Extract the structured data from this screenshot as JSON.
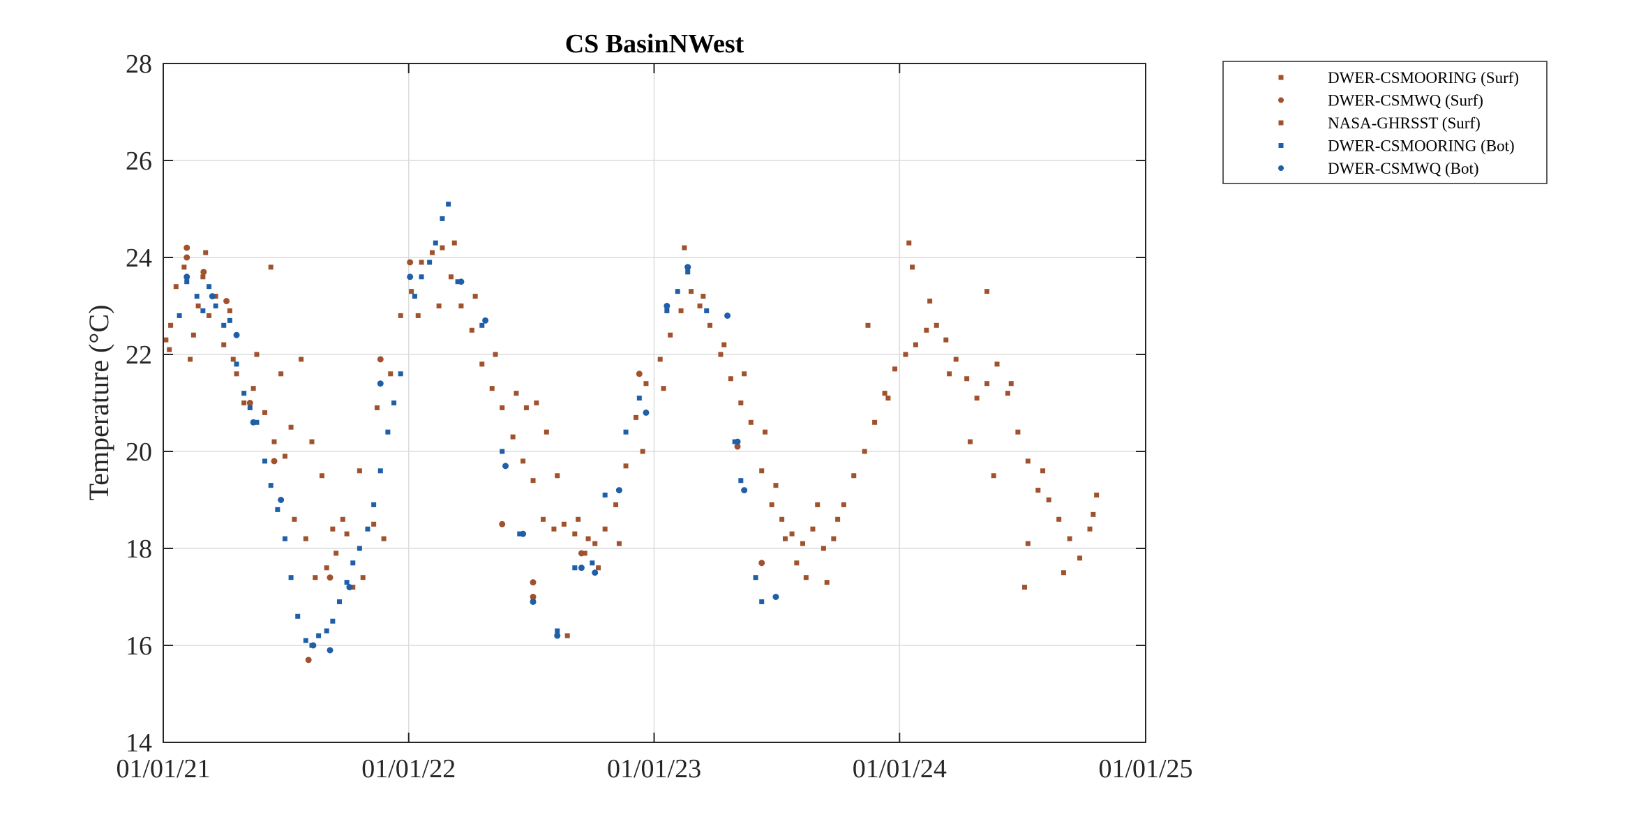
{
  "chart_data": {
    "type": "scatter",
    "title": "CS BasinNWest",
    "xlabel": "",
    "ylabel": "Temperature (°C)",
    "ylim": [
      14,
      28
    ],
    "yticks": [
      14,
      16,
      18,
      20,
      22,
      24,
      26,
      28
    ],
    "xlim": [
      "2021-01-01",
      "2025-01-01"
    ],
    "xticks": [
      "2021-01-01",
      "2022-01-01",
      "2023-01-01",
      "2024-01-01",
      "2025-01-01"
    ],
    "xtick_labels": [
      "01/01/21",
      "01/01/22",
      "01/01/23",
      "01/01/24",
      "01/01/25"
    ],
    "grid": true,
    "legend_position": "outside-top-right",
    "colors": {
      "surf": "#a0522d",
      "bot": "#1f5fa8",
      "axis": "#262626",
      "grid": "#dcdcdc"
    },
    "series": [
      {
        "name": "DWER-CSMOORING (Surf)",
        "marker": "square",
        "color": "#a0522d",
        "points": [
          [
            "2021-01-05",
            22.3
          ],
          [
            "2021-01-12",
            22.6
          ],
          [
            "2021-01-20",
            23.4
          ],
          [
            "2021-02-01",
            23.8
          ],
          [
            "2021-02-15",
            22.4
          ],
          [
            "2021-02-22",
            23.0
          ],
          [
            "2021-03-01",
            23.6
          ],
          [
            "2021-03-10",
            22.8
          ],
          [
            "2021-03-20",
            23.2
          ],
          [
            "2021-04-01",
            22.2
          ],
          [
            "2021-04-10",
            22.9
          ],
          [
            "2021-04-20",
            21.6
          ],
          [
            "2021-05-01",
            21.0
          ],
          [
            "2021-05-15",
            21.3
          ],
          [
            "2021-06-01",
            20.8
          ],
          [
            "2021-06-15",
            20.2
          ],
          [
            "2021-07-01",
            19.9
          ],
          [
            "2021-07-15",
            18.6
          ],
          [
            "2021-08-01",
            18.2
          ],
          [
            "2021-08-15",
            17.4
          ],
          [
            "2021-09-01",
            17.6
          ],
          [
            "2021-09-15",
            17.9
          ],
          [
            "2021-10-01",
            18.3
          ],
          [
            "2021-10-20",
            19.6
          ],
          [
            "2021-11-15",
            20.9
          ],
          [
            "2021-12-05",
            21.6
          ],
          [
            "2021-12-20",
            22.8
          ],
          [
            "2022-01-05",
            23.3
          ],
          [
            "2022-01-20",
            23.9
          ],
          [
            "2022-02-05",
            24.1
          ],
          [
            "2022-02-20",
            24.2
          ],
          [
            "2022-03-05",
            23.6
          ],
          [
            "2022-03-20",
            23.0
          ],
          [
            "2022-04-05",
            22.5
          ],
          [
            "2022-04-20",
            21.8
          ],
          [
            "2022-05-05",
            21.3
          ],
          [
            "2022-05-20",
            20.9
          ],
          [
            "2022-06-05",
            20.3
          ],
          [
            "2022-06-20",
            19.8
          ],
          [
            "2022-07-05",
            19.4
          ],
          [
            "2022-07-20",
            18.6
          ],
          [
            "2022-08-05",
            18.4
          ],
          [
            "2022-08-20",
            18.5
          ],
          [
            "2022-09-05",
            18.3
          ],
          [
            "2022-09-20",
            17.9
          ],
          [
            "2022-10-05",
            18.1
          ],
          [
            "2022-10-20",
            18.4
          ],
          [
            "2022-11-05",
            18.9
          ],
          [
            "2022-11-20",
            19.7
          ],
          [
            "2022-12-05",
            20.7
          ],
          [
            "2022-12-20",
            21.4
          ],
          [
            "2023-01-10",
            21.9
          ],
          [
            "2023-01-25",
            22.4
          ],
          [
            "2023-02-10",
            22.9
          ],
          [
            "2023-02-25",
            23.3
          ],
          [
            "2023-03-10",
            23.0
          ],
          [
            "2023-03-25",
            22.6
          ],
          [
            "2023-04-10",
            22.0
          ],
          [
            "2023-04-25",
            21.5
          ],
          [
            "2023-05-10",
            21.0
          ],
          [
            "2023-05-25",
            20.6
          ],
          [
            "2023-06-10",
            19.6
          ],
          [
            "2023-06-25",
            18.9
          ],
          [
            "2023-07-10",
            18.6
          ],
          [
            "2023-07-25",
            18.3
          ],
          [
            "2023-08-10",
            18.1
          ],
          [
            "2023-08-25",
            18.4
          ],
          [
            "2023-09-10",
            18.0
          ],
          [
            "2023-09-25",
            18.2
          ],
          [
            "2023-10-10",
            18.9
          ],
          [
            "2023-10-25",
            19.5
          ],
          [
            "2023-11-10",
            20.0
          ],
          [
            "2023-11-25",
            20.6
          ],
          [
            "2023-12-10",
            21.2
          ],
          [
            "2023-12-25",
            21.7
          ],
          [
            "2024-01-10",
            22.0
          ],
          [
            "2024-01-25",
            22.2
          ],
          [
            "2024-02-10",
            22.5
          ],
          [
            "2024-02-25",
            22.6
          ],
          [
            "2024-03-10",
            22.3
          ],
          [
            "2024-03-25",
            21.9
          ],
          [
            "2024-04-10",
            21.5
          ],
          [
            "2024-04-25",
            21.1
          ],
          [
            "2024-05-10",
            21.4
          ],
          [
            "2024-05-25",
            21.8
          ],
          [
            "2024-06-10",
            21.2
          ],
          [
            "2024-06-25",
            20.4
          ],
          [
            "2024-07-10",
            19.8
          ],
          [
            "2024-07-25",
            19.2
          ],
          [
            "2024-08-10",
            19.0
          ],
          [
            "2024-08-25",
            18.6
          ],
          [
            "2024-09-10",
            18.2
          ],
          [
            "2024-09-25",
            17.8
          ],
          [
            "2024-10-10",
            18.4
          ],
          [
            "2024-10-20",
            19.1
          ]
        ]
      },
      {
        "name": "DWER-CSMWQ (Surf)",
        "marker": "circle",
        "color": "#a0522d",
        "points": [
          [
            "2021-02-05",
            24.2
          ],
          [
            "2021-02-05",
            24.0
          ],
          [
            "2021-03-02",
            23.7
          ],
          [
            "2021-04-05",
            23.1
          ],
          [
            "2021-05-10",
            21.0
          ],
          [
            "2021-06-15",
            19.8
          ],
          [
            "2021-08-05",
            15.7
          ],
          [
            "2021-09-06",
            17.4
          ],
          [
            "2021-11-20",
            21.9
          ],
          [
            "2022-01-03",
            23.9
          ],
          [
            "2022-05-20",
            18.5
          ],
          [
            "2022-07-05",
            17.3
          ],
          [
            "2022-07-05",
            17.0
          ],
          [
            "2022-09-15",
            17.9
          ],
          [
            "2022-12-10",
            21.6
          ],
          [
            "2023-02-20",
            23.8
          ],
          [
            "2023-05-05",
            20.1
          ],
          [
            "2023-06-10",
            17.7
          ]
        ]
      },
      {
        "name": "NASA-GHRSST (Surf)",
        "marker": "square",
        "color": "#a0522d",
        "points": [
          [
            "2021-01-10",
            22.1
          ],
          [
            "2021-02-10",
            21.9
          ],
          [
            "2021-03-05",
            24.1
          ],
          [
            "2021-04-15",
            21.9
          ],
          [
            "2021-05-20",
            22.0
          ],
          [
            "2021-06-10",
            23.8
          ],
          [
            "2021-06-25",
            21.6
          ],
          [
            "2021-07-10",
            20.5
          ],
          [
            "2021-07-25",
            21.9
          ],
          [
            "2021-08-10",
            20.2
          ],
          [
            "2021-08-25",
            19.5
          ],
          [
            "2021-09-10",
            18.4
          ],
          [
            "2021-09-25",
            18.6
          ],
          [
            "2021-10-10",
            17.2
          ],
          [
            "2021-10-25",
            17.4
          ],
          [
            "2021-11-10",
            18.5
          ],
          [
            "2021-11-25",
            18.2
          ],
          [
            "2022-01-15",
            22.8
          ],
          [
            "2022-02-15",
            23.0
          ],
          [
            "2022-03-10",
            24.3
          ],
          [
            "2022-04-10",
            23.2
          ],
          [
            "2022-05-10",
            22.0
          ],
          [
            "2022-06-10",
            21.2
          ],
          [
            "2022-06-25",
            20.9
          ],
          [
            "2022-07-10",
            21.0
          ],
          [
            "2022-07-25",
            20.4
          ],
          [
            "2022-08-10",
            19.5
          ],
          [
            "2022-08-25",
            16.2
          ],
          [
            "2022-09-10",
            18.6
          ],
          [
            "2022-09-25",
            18.2
          ],
          [
            "2022-10-10",
            17.6
          ],
          [
            "2022-11-10",
            18.1
          ],
          [
            "2022-12-15",
            20.0
          ],
          [
            "2023-01-15",
            21.3
          ],
          [
            "2023-02-15",
            24.2
          ],
          [
            "2023-03-15",
            23.2
          ],
          [
            "2023-04-15",
            22.2
          ],
          [
            "2023-05-15",
            21.6
          ],
          [
            "2023-06-15",
            20.4
          ],
          [
            "2023-07-01",
            19.3
          ],
          [
            "2023-07-15",
            18.2
          ],
          [
            "2023-08-01",
            17.7
          ],
          [
            "2023-08-15",
            17.4
          ],
          [
            "2023-09-01",
            18.9
          ],
          [
            "2023-09-15",
            17.3
          ],
          [
            "2023-10-01",
            18.6
          ],
          [
            "2023-11-15",
            22.6
          ],
          [
            "2023-12-15",
            21.1
          ],
          [
            "2024-01-15",
            24.3
          ],
          [
            "2024-01-20",
            23.8
          ],
          [
            "2024-02-15",
            23.1
          ],
          [
            "2024-03-15",
            21.6
          ],
          [
            "2024-04-15",
            20.2
          ],
          [
            "2024-05-10",
            23.3
          ],
          [
            "2024-05-20",
            19.5
          ],
          [
            "2024-06-15",
            21.4
          ],
          [
            "2024-07-05",
            17.2
          ],
          [
            "2024-07-10",
            18.1
          ],
          [
            "2024-08-01",
            19.6
          ],
          [
            "2024-09-01",
            17.5
          ],
          [
            "2024-10-15",
            18.7
          ]
        ]
      },
      {
        "name": "DWER-CSMOORING (Bot)",
        "marker": "square",
        "color": "#1f5fa8",
        "points": [
          [
            "2021-01-25",
            22.8
          ],
          [
            "2021-02-05",
            23.5
          ],
          [
            "2021-02-20",
            23.2
          ],
          [
            "2021-03-01",
            22.9
          ],
          [
            "2021-03-10",
            23.4
          ],
          [
            "2021-03-20",
            23.0
          ],
          [
            "2021-04-01",
            22.6
          ],
          [
            "2021-04-10",
            22.7
          ],
          [
            "2021-04-20",
            21.8
          ],
          [
            "2021-05-01",
            21.2
          ],
          [
            "2021-05-10",
            20.9
          ],
          [
            "2021-05-20",
            20.6
          ],
          [
            "2021-06-01",
            19.8
          ],
          [
            "2021-06-10",
            19.3
          ],
          [
            "2021-06-20",
            18.8
          ],
          [
            "2021-07-01",
            18.2
          ],
          [
            "2021-07-10",
            17.4
          ],
          [
            "2021-07-20",
            16.6
          ],
          [
            "2021-08-01",
            16.1
          ],
          [
            "2021-08-10",
            16.0
          ],
          [
            "2021-08-20",
            16.2
          ],
          [
            "2021-09-01",
            16.3
          ],
          [
            "2021-09-10",
            16.5
          ],
          [
            "2021-09-20",
            16.9
          ],
          [
            "2021-10-01",
            17.3
          ],
          [
            "2021-10-10",
            17.7
          ],
          [
            "2021-10-20",
            18.0
          ],
          [
            "2021-11-01",
            18.4
          ],
          [
            "2021-11-10",
            18.9
          ],
          [
            "2021-11-20",
            19.6
          ],
          [
            "2021-12-01",
            20.4
          ],
          [
            "2021-12-10",
            21.0
          ],
          [
            "2021-12-20",
            21.6
          ],
          [
            "2022-01-10",
            23.2
          ],
          [
            "2022-01-20",
            23.6
          ],
          [
            "2022-02-01",
            23.9
          ],
          [
            "2022-02-10",
            24.3
          ],
          [
            "2022-02-20",
            24.8
          ],
          [
            "2022-03-01",
            25.1
          ],
          [
            "2022-03-15",
            23.5
          ],
          [
            "2022-04-20",
            22.6
          ],
          [
            "2022-05-20",
            20.0
          ],
          [
            "2022-06-15",
            18.3
          ],
          [
            "2022-07-05",
            16.9
          ],
          [
            "2022-08-10",
            16.3
          ],
          [
            "2022-09-05",
            17.6
          ],
          [
            "2022-10-01",
            17.7
          ],
          [
            "2022-10-20",
            19.1
          ],
          [
            "2022-11-20",
            20.4
          ],
          [
            "2022-12-10",
            21.1
          ],
          [
            "2023-01-20",
            22.9
          ],
          [
            "2023-02-05",
            23.3
          ],
          [
            "2023-02-20",
            23.7
          ],
          [
            "2023-03-20",
            22.9
          ],
          [
            "2023-05-01",
            20.2
          ],
          [
            "2023-05-10",
            19.4
          ],
          [
            "2023-06-01",
            17.4
          ],
          [
            "2023-06-10",
            16.9
          ]
        ]
      },
      {
        "name": "DWER-CSMWQ (Bot)",
        "marker": "circle",
        "color": "#1f5fa8",
        "points": [
          [
            "2021-02-05",
            23.6
          ],
          [
            "2021-03-15",
            23.2
          ],
          [
            "2021-04-20",
            22.4
          ],
          [
            "2021-05-15",
            20.6
          ],
          [
            "2021-06-25",
            19.0
          ],
          [
            "2021-08-12",
            16.0
          ],
          [
            "2021-09-06",
            15.9
          ],
          [
            "2021-10-05",
            17.2
          ],
          [
            "2021-11-20",
            21.4
          ],
          [
            "2022-01-03",
            23.6
          ],
          [
            "2022-03-20",
            23.5
          ],
          [
            "2022-04-25",
            22.7
          ],
          [
            "2022-05-25",
            19.7
          ],
          [
            "2022-06-20",
            18.3
          ],
          [
            "2022-07-05",
            16.9
          ],
          [
            "2022-08-10",
            16.2
          ],
          [
            "2022-09-15",
            17.6
          ],
          [
            "2022-10-05",
            17.5
          ],
          [
            "2022-11-10",
            19.2
          ],
          [
            "2022-12-20",
            20.8
          ],
          [
            "2023-01-20",
            23.0
          ],
          [
            "2023-02-20",
            23.8
          ],
          [
            "2023-04-20",
            22.8
          ],
          [
            "2023-05-05",
            20.2
          ],
          [
            "2023-05-15",
            19.2
          ],
          [
            "2023-07-01",
            17.0
          ]
        ]
      }
    ]
  }
}
